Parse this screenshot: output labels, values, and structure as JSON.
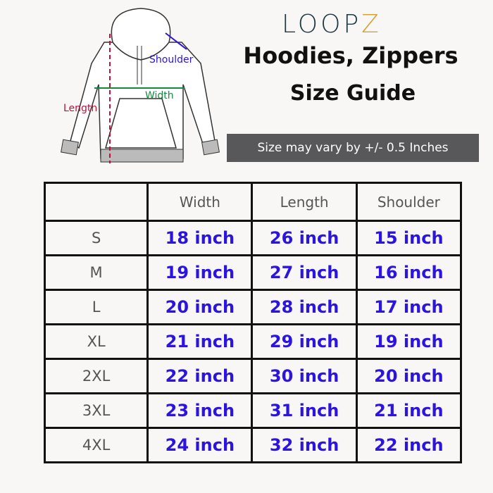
{
  "brand": {
    "logo_main": "LOOP",
    "logo_accent": "Z"
  },
  "title": "Hoodies, Zippers",
  "subtitle": "Size Guide",
  "note": "Size may vary by +/- 0.5 Inches",
  "diagram": {
    "shoulder": "Shoulder",
    "width": "Width",
    "length": "Length",
    "colors": {
      "shoulder": "#2b14e0",
      "width": "#128a3c",
      "length": "#c0103a"
    }
  },
  "table": {
    "headers": [
      "",
      "Width",
      "Length",
      "Shoulder"
    ],
    "rows": [
      {
        "size": "S",
        "width": "18 inch",
        "length": "26 inch",
        "shoulder": "15 inch"
      },
      {
        "size": "M",
        "width": "19 inch",
        "length": "27 inch",
        "shoulder": "16 inch"
      },
      {
        "size": "L",
        "width": "20 inch",
        "length": "28 inch",
        "shoulder": "17 inch"
      },
      {
        "size": "XL",
        "width": "21 inch",
        "length": "29 inch",
        "shoulder": "19 inch"
      },
      {
        "size": "2XL",
        "width": "22 inch",
        "length": "30 inch",
        "shoulder": "20 inch"
      },
      {
        "size": "3XL",
        "width": "23 inch",
        "length": "31 inch",
        "shoulder": "21 inch"
      },
      {
        "size": "4XL",
        "width": "24 inch",
        "length": "32 inch",
        "shoulder": "22 inch"
      }
    ]
  }
}
